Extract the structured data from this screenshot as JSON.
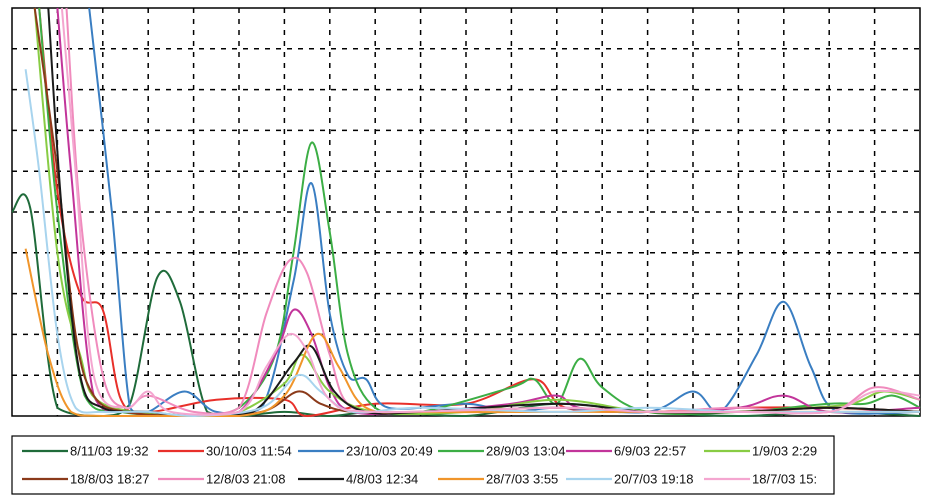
{
  "chart_data": {
    "type": "line",
    "title": "",
    "xlabel": "",
    "ylabel": "",
    "grid": true,
    "legend_position": "bottom",
    "x": [
      0,
      1,
      2,
      3,
      4,
      5,
      6,
      7,
      8,
      9,
      10,
      11,
      12,
      13,
      14,
      15,
      16,
      17,
      18,
      19,
      20
    ],
    "xlim": [
      0,
      20
    ],
    "ylim": [
      0,
      10
    ],
    "series": [
      {
        "name": "8/11/03 19:32",
        "color": "#1f6b3a",
        "points": [
          [
            0,
            5
          ],
          [
            0.4,
            5.1
          ],
          [
            1,
            0.2
          ],
          [
            2,
            0
          ],
          [
            2.6,
            0.3
          ],
          [
            3.2,
            3.4
          ],
          [
            3.7,
            2.8
          ],
          [
            4.3,
            0.1
          ],
          [
            5,
            0
          ],
          [
            6,
            0.1
          ],
          [
            7,
            0
          ],
          [
            8,
            0.1
          ],
          [
            10,
            0
          ],
          [
            12,
            0.3
          ],
          [
            14,
            0.1
          ],
          [
            16,
            0
          ],
          [
            18,
            0.1
          ],
          [
            20,
            0
          ]
        ]
      },
      {
        "name": "30/10/03 11:54",
        "color": "#e8302a",
        "points": [
          [
            0.6,
            10
          ],
          [
            1,
            5.5
          ],
          [
            1.5,
            3
          ],
          [
            2,
            2.6
          ],
          [
            2.4,
            0.4
          ],
          [
            3,
            0.1
          ],
          [
            4.5,
            0.4
          ],
          [
            6,
            0.4
          ],
          [
            6.5,
            0
          ],
          [
            8,
            0.3
          ],
          [
            10,
            0.3
          ],
          [
            11.5,
            0.9
          ],
          [
            12.2,
            0.2
          ],
          [
            14,
            0.1
          ],
          [
            16,
            0.2
          ],
          [
            18,
            0.2
          ],
          [
            20,
            0.1
          ]
        ]
      },
      {
        "name": "23/10/03 20:49",
        "color": "#3a7ec2",
        "points": [
          [
            1.7,
            10
          ],
          [
            2.2,
            5
          ],
          [
            2.6,
            0.2
          ],
          [
            3,
            0.1
          ],
          [
            3.8,
            0.6
          ],
          [
            4.5,
            0.1
          ],
          [
            5.5,
            0.2
          ],
          [
            6.2,
            3.3
          ],
          [
            6.6,
            5.7
          ],
          [
            7,
            2.5
          ],
          [
            7.4,
            1
          ],
          [
            7.8,
            0.9
          ],
          [
            8.3,
            0.2
          ],
          [
            10,
            0.3
          ],
          [
            11,
            0.1
          ],
          [
            12,
            0.2
          ],
          [
            14,
            0.1
          ],
          [
            15,
            0.6
          ],
          [
            15.6,
            0.1
          ],
          [
            16.4,
            1.5
          ],
          [
            17,
            2.8
          ],
          [
            17.6,
            1.2
          ],
          [
            18.2,
            0.1
          ],
          [
            20,
            0.1
          ]
        ]
      },
      {
        "name": "28/9/03 13:04",
        "color": "#3cae45",
        "points": [
          [
            0.6,
            10
          ],
          [
            1,
            5
          ],
          [
            1.6,
            0.5
          ],
          [
            2.4,
            0.1
          ],
          [
            4,
            0
          ],
          [
            5,
            0.2
          ],
          [
            5.8,
            1.5
          ],
          [
            6.2,
            4
          ],
          [
            6.6,
            6.7
          ],
          [
            7,
            4.5
          ],
          [
            7.4,
            1.5
          ],
          [
            8,
            0.2
          ],
          [
            9,
            0.1
          ],
          [
            11,
            0.7
          ],
          [
            11.5,
            0.9
          ],
          [
            12,
            0.3
          ],
          [
            12.5,
            1.4
          ],
          [
            13,
            0.7
          ],
          [
            14,
            0.1
          ],
          [
            16,
            0.1
          ],
          [
            18,
            0.3
          ],
          [
            18.8,
            0.3
          ],
          [
            19.4,
            0.5
          ],
          [
            20,
            0.2
          ]
        ]
      },
      {
        "name": "6/9/03 22:57",
        "color": "#c2349a",
        "points": [
          [
            1,
            10
          ],
          [
            1.3,
            6
          ],
          [
            1.8,
            0.5
          ],
          [
            2.5,
            0.1
          ],
          [
            4,
            0
          ],
          [
            5,
            0.1
          ],
          [
            5.8,
            1.5
          ],
          [
            6.2,
            2.6
          ],
          [
            6.6,
            2
          ],
          [
            7,
            0.7
          ],
          [
            7.5,
            0.1
          ],
          [
            9,
            0.1
          ],
          [
            11,
            0.3
          ],
          [
            12,
            0.5
          ],
          [
            12.5,
            0.2
          ],
          [
            14,
            0.1
          ],
          [
            16,
            0.2
          ],
          [
            17,
            0.5
          ],
          [
            18,
            0.1
          ],
          [
            20,
            0.2
          ]
        ]
      },
      {
        "name": "1/9/03 2:29",
        "color": "#88cc44",
        "points": [
          [
            0.5,
            10
          ],
          [
            1,
            4
          ],
          [
            1.5,
            1.5
          ],
          [
            2,
            0.3
          ],
          [
            4,
            0
          ],
          [
            5,
            0.1
          ],
          [
            6,
            0.8
          ],
          [
            6.4,
            1.5
          ],
          [
            7,
            0.6
          ],
          [
            8,
            0.1
          ],
          [
            10,
            0.1
          ],
          [
            12,
            0.4
          ],
          [
            14,
            0.1
          ],
          [
            16,
            0.1
          ],
          [
            17.5,
            0.2
          ],
          [
            18.5,
            0.3
          ],
          [
            19.2,
            0.6
          ],
          [
            20,
            0.4
          ]
        ]
      },
      {
        "name": "18/8/03 18:27",
        "color": "#8b3a1a",
        "points": [
          [
            0.5,
            10
          ],
          [
            1,
            6
          ],
          [
            1.4,
            2
          ],
          [
            1.8,
            0.5
          ],
          [
            2.5,
            0.1
          ],
          [
            4,
            0
          ],
          [
            5.5,
            0.1
          ],
          [
            6.3,
            0.6
          ],
          [
            6.8,
            0.3
          ],
          [
            7.5,
            0.1
          ],
          [
            9,
            0.1
          ],
          [
            12,
            0.2
          ],
          [
            14,
            0.1
          ],
          [
            16,
            0.1
          ],
          [
            18,
            0.2
          ],
          [
            20,
            0.1
          ]
        ]
      },
      {
        "name": "12/8/03 21:08",
        "color": "#f08bbd",
        "points": [
          [
            1.2,
            10
          ],
          [
            1.5,
            5
          ],
          [
            2,
            1
          ],
          [
            2.5,
            0.2
          ],
          [
            3,
            0.5
          ],
          [
            4,
            0.1
          ],
          [
            5,
            0.2
          ],
          [
            5.6,
            2.5
          ],
          [
            6.1,
            3.8
          ],
          [
            6.5,
            3.5
          ],
          [
            7,
            1.5
          ],
          [
            7.5,
            0.2
          ],
          [
            9,
            0.1
          ],
          [
            12,
            0.2
          ],
          [
            14,
            0.1
          ],
          [
            16,
            0.2
          ],
          [
            18,
            0.1
          ],
          [
            19,
            0.7
          ],
          [
            20,
            0.4
          ]
        ]
      },
      {
        "name": "4/8/03 12:34",
        "color": "#1a1a1a",
        "points": [
          [
            0.8,
            10
          ],
          [
            1.1,
            5
          ],
          [
            1.5,
            1
          ],
          [
            2,
            0.2
          ],
          [
            3,
            0.1
          ],
          [
            4,
            0
          ],
          [
            5.3,
            0.1
          ],
          [
            6.2,
            1.3
          ],
          [
            6.6,
            1.7
          ],
          [
            7.1,
            0.6
          ],
          [
            7.8,
            0.1
          ],
          [
            9,
            0.1
          ],
          [
            12,
            0.3
          ],
          [
            14,
            0.1
          ],
          [
            16,
            0.1
          ],
          [
            18,
            0.2
          ],
          [
            20,
            0.1
          ]
        ]
      },
      {
        "name": "28/7/03 3:55",
        "color": "#f0952a",
        "points": [
          [
            0.3,
            4.1
          ],
          [
            0.8,
            1.5
          ],
          [
            1.3,
            0.1
          ],
          [
            2,
            0
          ],
          [
            5,
            0
          ],
          [
            6,
            0.5
          ],
          [
            6.7,
            2
          ],
          [
            7.2,
            1.2
          ],
          [
            7.8,
            0.2
          ],
          [
            9,
            0.1
          ],
          [
            12,
            0.1
          ],
          [
            16,
            0.1
          ],
          [
            18,
            0.1
          ],
          [
            20,
            0.1
          ]
        ]
      },
      {
        "name": "20/7/03 19:18",
        "color": "#a8d4ee",
        "points": [
          [
            0.3,
            8.5
          ],
          [
            0.6,
            6
          ],
          [
            1,
            2
          ],
          [
            1.4,
            0.2
          ],
          [
            2,
            0.1
          ],
          [
            3,
            0.1
          ],
          [
            4,
            0
          ],
          [
            5.5,
            0.2
          ],
          [
            6.3,
            1
          ],
          [
            6.8,
            0.6
          ],
          [
            7.5,
            0.1
          ],
          [
            9,
            0.2
          ],
          [
            12,
            0.1
          ],
          [
            14,
            0.2
          ],
          [
            16,
            0.1
          ],
          [
            18,
            0.1
          ],
          [
            20,
            0.1
          ]
        ]
      },
      {
        "name": "18/7/03 15:",
        "color": "#f4a6d0",
        "points": [
          [
            1.1,
            10
          ],
          [
            1.4,
            6
          ],
          [
            1.8,
            1
          ],
          [
            2.5,
            0.2
          ],
          [
            3,
            0.6
          ],
          [
            3.5,
            0.1
          ],
          [
            5,
            0.1
          ],
          [
            5.6,
            1.2
          ],
          [
            6.1,
            2
          ],
          [
            6.5,
            1.6
          ],
          [
            7,
            0.4
          ],
          [
            8,
            0.1
          ],
          [
            12,
            0.2
          ],
          [
            14,
            0.1
          ],
          [
            16,
            0.1
          ],
          [
            18,
            0.1
          ],
          [
            19,
            0.6
          ],
          [
            20,
            0.5
          ]
        ]
      }
    ]
  }
}
